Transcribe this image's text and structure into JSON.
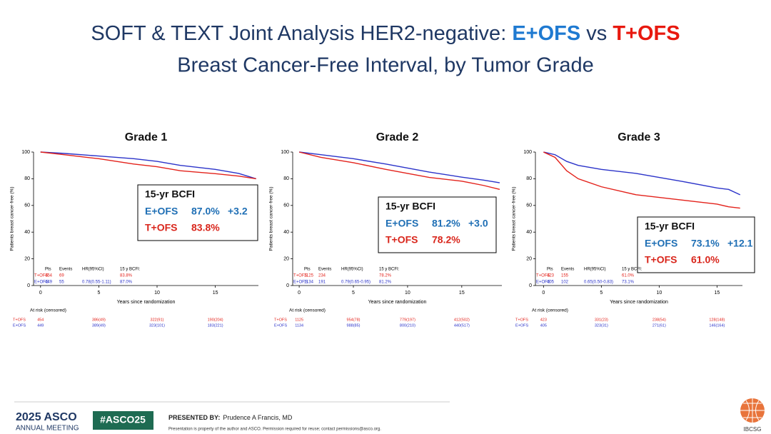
{
  "header": {
    "title_parts": [
      "SOFT & TEXT Joint Analysis HER2-negative: ",
      "E+OFS",
      " vs ",
      "T+OFS"
    ],
    "subtitle": "Breast Cancer-Free Interval, by Tumor Grade"
  },
  "chart_data": [
    {
      "type": "line",
      "title": "Grade 1",
      "x_label": "Years since randomization",
      "y_label": "Patients breast cancer-free (%)",
      "x": [
        0,
        2,
        5,
        8,
        10,
        12,
        15,
        17,
        18.5
      ],
      "series": [
        {
          "name": "E+OFS",
          "color": "#2b33c9",
          "values": [
            100,
            99,
            97,
            95,
            93,
            90,
            87,
            84,
            80
          ]
        },
        {
          "name": "T+OFS",
          "color": "#e3221b",
          "values": [
            100,
            98,
            95,
            91,
            89,
            86,
            83.8,
            82,
            80
          ]
        }
      ],
      "xlim": [
        -0.6,
        18.7
      ],
      "xticks": [
        0,
        5,
        10,
        15
      ],
      "ylim": [
        0,
        100
      ],
      "yticks": [
        0,
        20,
        40,
        60,
        80,
        100
      ],
      "annotation": {
        "title": "15-yr BCFI",
        "entries": [
          {
            "label": "E+OFS",
            "value": "87.0%",
            "diff": "+3.2",
            "color": "#1f6fb5"
          },
          {
            "label": "T+OFS",
            "value": "83.8%",
            "diff": null,
            "color": "#d9261c"
          }
        ]
      },
      "stats_table": {
        "header": [
          "Pts",
          "Events",
          "HR(95%CI)",
          "15 y BCFI:"
        ],
        "rows": [
          [
            "T+OFS",
            454,
            69,
            null,
            "83.8%"
          ],
          [
            "E+OFS",
            449,
            55,
            "0.78(0.55-1.11)",
            "87.0%"
          ]
        ]
      },
      "at_risk": {
        "label": "At risk (censored)",
        "x": [
          0,
          5,
          10,
          15
        ],
        "rows": [
          {
            "name": "T+OFS",
            "values": [
              "454",
              "386(49)",
              "322(91)",
              "190(204)"
            ]
          },
          {
            "name": "E+OFS",
            "values": [
              "449",
              "389(49)",
              "323(101)",
              "183(221)"
            ]
          }
        ]
      }
    },
    {
      "type": "line",
      "title": "Grade 2",
      "x_label": "Years since randomization",
      "y_label": "Patients breast cancer-free (%)",
      "x": [
        0,
        2,
        5,
        8,
        10,
        12,
        15,
        17,
        18.5
      ],
      "series": [
        {
          "name": "E+OFS",
          "color": "#2b33c9",
          "values": [
            100,
            98,
            95,
            91,
            88,
            85,
            81.2,
            79,
            77
          ]
        },
        {
          "name": "T+OFS",
          "color": "#e3221b",
          "values": [
            100,
            96,
            92,
            87,
            84,
            81,
            78.2,
            75,
            72
          ]
        }
      ],
      "xlim": [
        -0.6,
        18.7
      ],
      "xticks": [
        0,
        5,
        10,
        15
      ],
      "ylim": [
        0,
        100
      ],
      "yticks": [
        0,
        20,
        40,
        60,
        80,
        100
      ],
      "annotation": {
        "title": "15-yr BCFI",
        "entries": [
          {
            "label": "E+OFS",
            "value": "81.2%",
            "diff": "+3.0",
            "color": "#1f6fb5"
          },
          {
            "label": "T+OFS",
            "value": "78.2%",
            "diff": null,
            "color": "#d9261c"
          }
        ]
      },
      "stats_table": {
        "header": [
          "Pts",
          "Events",
          "HR(95%CI)",
          "15 y BCFI:"
        ],
        "rows": [
          [
            "T+OFS",
            1125,
            234,
            null,
            "78.2%"
          ],
          [
            "E+OFS",
            1134,
            191,
            "0.79(0.65-0.95)",
            "81.2%"
          ]
        ]
      },
      "at_risk": {
        "label": "At risk (censored)",
        "x": [
          0,
          5,
          10,
          15
        ],
        "rows": [
          {
            "name": "T+OFS",
            "values": [
              "1125",
              "954(78)",
              "779(197)",
              "412(502)"
            ]
          },
          {
            "name": "E+OFS",
            "values": [
              "1134",
              "988(85)",
              "800(210)",
              "440(517)"
            ]
          }
        ]
      }
    },
    {
      "type": "line",
      "title": "Grade 3",
      "x_label": "Years since randomization",
      "y_label": "Patients breast cancer-free (%)",
      "x": [
        0,
        1,
        2,
        3,
        5,
        8,
        10,
        12,
        15,
        16,
        17
      ],
      "series": [
        {
          "name": "E+OFS",
          "color": "#2b33c9",
          "values": [
            100,
            98,
            93,
            90,
            87,
            84,
            81,
            78,
            73.1,
            72,
            68
          ]
        },
        {
          "name": "T+OFS",
          "color": "#e3221b",
          "values": [
            100,
            96,
            86,
            80,
            74,
            68,
            66,
            64,
            61,
            59,
            58
          ]
        }
      ],
      "xlim": [
        -0.7,
        17.2
      ],
      "xticks": [
        0,
        5,
        10,
        15
      ],
      "ylim": [
        0,
        100
      ],
      "yticks": [
        0,
        20,
        40,
        60,
        80,
        100
      ],
      "annotation": {
        "title": "15-yr BCFI",
        "entries": [
          {
            "label": "E+OFS",
            "value": "73.1%",
            "diff": "+12.1",
            "color": "#1f6fb5"
          },
          {
            "label": "T+OFS",
            "value": "61.0%",
            "diff": null,
            "color": "#d9261c"
          }
        ]
      },
      "stats_table": {
        "header": [
          "Pts",
          "Events",
          "HR(95%CI)",
          "15 y BCFI:"
        ],
        "rows": [
          [
            "T+OFS",
            423,
            155,
            null,
            "61.0%"
          ],
          [
            "E+OFS",
            405,
            102,
            "0.65(0.50-0.83)",
            "73.1%"
          ]
        ]
      },
      "at_risk": {
        "label": "At risk (censored)",
        "x": [
          0,
          5,
          10,
          15
        ],
        "rows": [
          {
            "name": "T+OFS",
            "values": [
              "423",
              "331(23)",
              "238(54)",
              "128(148)"
            ]
          },
          {
            "name": "E+OFS",
            "values": [
              "405",
              "323(31)",
              "271(61)",
              "146(164)"
            ]
          }
        ]
      }
    }
  ],
  "footer": {
    "meeting_year": "2025 ASCO",
    "meeting_name": "ANNUAL MEETING",
    "hashtag": "#ASCO25",
    "presented_by": "PRESENTED BY:",
    "presenter": "Prudence A Francis, MD",
    "notice": "Presentation is property of the author and ASCO. Permission required for reuse; contact permissions@asco.org.",
    "logo_text": "IBCSG"
  }
}
